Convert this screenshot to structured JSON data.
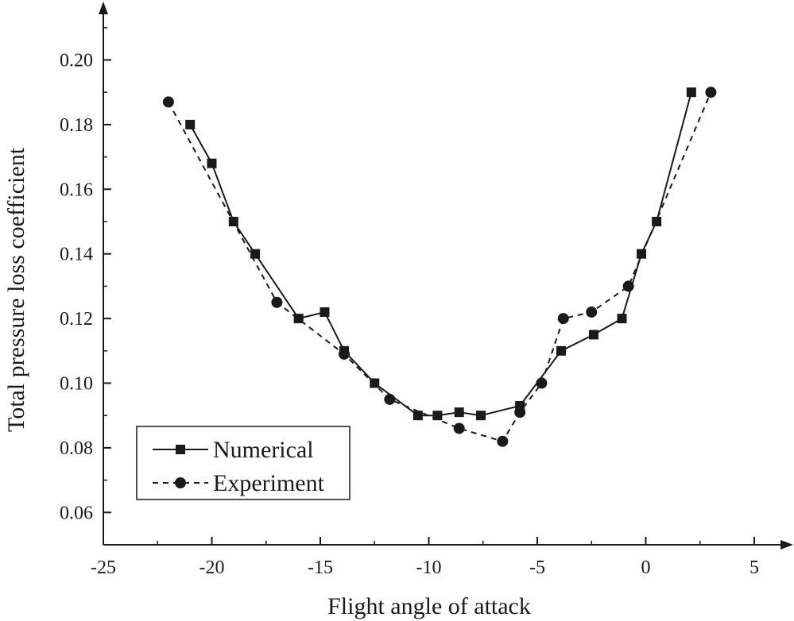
{
  "chart_data": {
    "type": "line",
    "title": "",
    "xlabel": "Flight angle of attack",
    "ylabel": "Total pressure loss coefficient",
    "xlim": [
      -25,
      5
    ],
    "ylim": [
      0.05,
      0.215
    ],
    "xticks": [
      -25,
      -20,
      -15,
      -10,
      -5,
      0,
      5
    ],
    "xtick_labels": [
      "-25",
      "-20",
      "-15",
      "-10",
      "-5",
      "0",
      "5"
    ],
    "yticks": [
      0.06,
      0.08,
      0.1,
      0.12,
      0.14,
      0.16,
      0.18,
      0.2
    ],
    "ytick_labels": [
      "0.06",
      "0.08",
      "0.10",
      "0.12",
      "0.14",
      "0.16",
      "0.18",
      "0.20"
    ],
    "grid": false,
    "legend_position": "bottom-left",
    "series": [
      {
        "name": "Numerical",
        "line_style": "solid",
        "marker": "square",
        "x": [
          -21,
          -20,
          -19,
          -18,
          -16,
          -14.8,
          -13.9,
          -12.5,
          -10.5,
          -9.6,
          -8.6,
          -7.6,
          -5.8,
          -3.9,
          -2.4,
          -1.1,
          -0.2,
          0.5,
          2.1
        ],
        "y": [
          0.18,
          0.168,
          0.15,
          0.14,
          0.12,
          0.122,
          0.11,
          0.1,
          0.09,
          0.09,
          0.091,
          0.09,
          0.093,
          0.11,
          0.115,
          0.12,
          0.14,
          0.15,
          0.19
        ]
      },
      {
        "name": "Experiment",
        "line_style": "dashed",
        "marker": "circle",
        "x": [
          -22,
          -17,
          -13.9,
          -11.8,
          -8.6,
          -6.6,
          -5.8,
          -4.8,
          -3.8,
          -2.5,
          -0.8,
          3.0
        ],
        "y": [
          0.187,
          0.125,
          0.109,
          0.095,
          0.086,
          0.082,
          0.091,
          0.1,
          0.12,
          0.122,
          0.13,
          0.19
        ]
      }
    ]
  }
}
